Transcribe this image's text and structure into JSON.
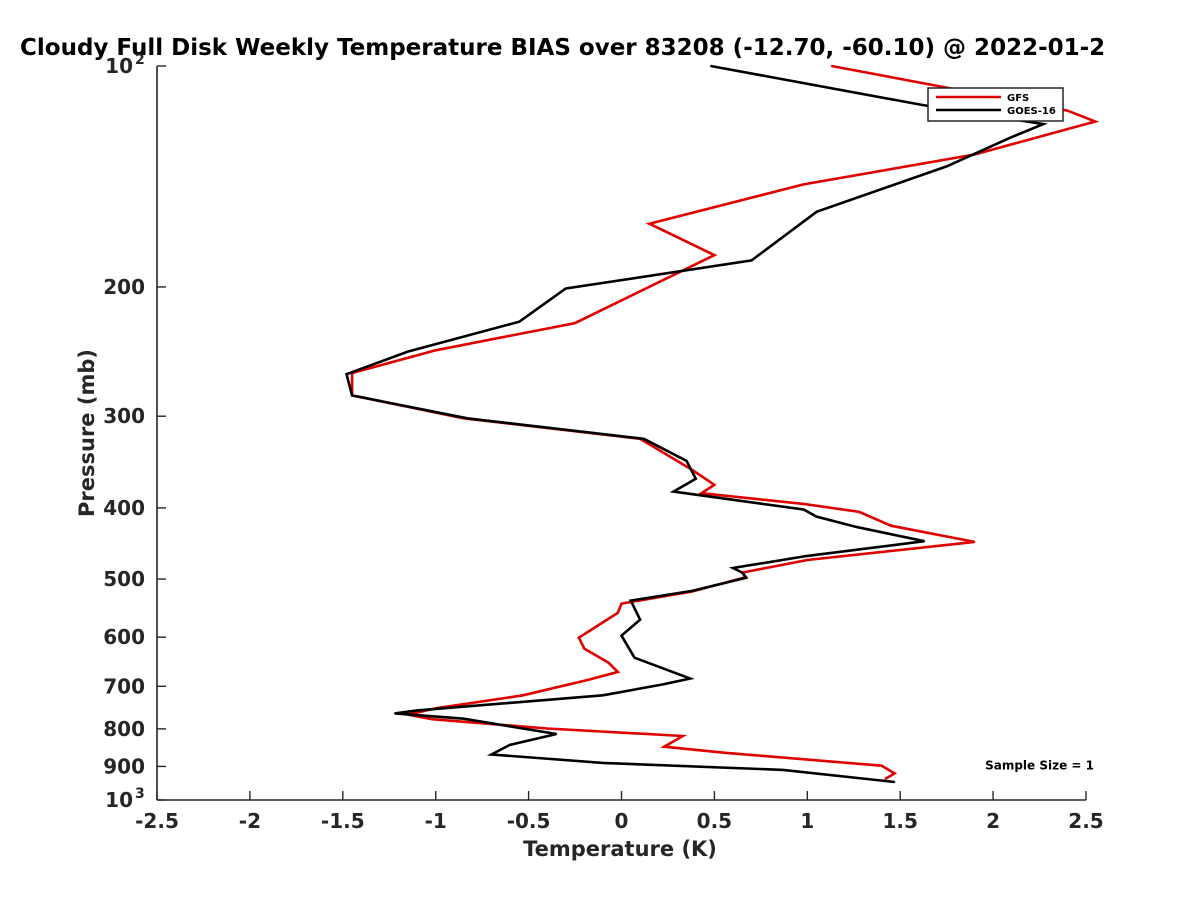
{
  "chart_data": {
    "type": "line",
    "title": "Cloudy Full Disk Weekly Temperature BIAS over 83208 (-12.70, -60.10) @ 2022-01-2",
    "xlabel": "Temperature (K)",
    "ylabel": "Pressure (mb)",
    "xlim": [
      -2.5,
      2.5
    ],
    "ylim": [
      100,
      1000
    ],
    "y_scale": "log",
    "y_reversed": true,
    "x_ticks": [
      "-2.5",
      "-2",
      "-1.5",
      "-1",
      "-0.5",
      "0",
      "0.5",
      "1",
      "1.5",
      "2",
      "2.5"
    ],
    "y_ticks": [
      {
        "value": 100,
        "base": "10",
        "exp": "2"
      },
      {
        "value": 200,
        "label": "200"
      },
      {
        "value": 300,
        "label": "300"
      },
      {
        "value": 400,
        "label": "400"
      },
      {
        "value": 500,
        "label": "500"
      },
      {
        "value": 600,
        "label": "600"
      },
      {
        "value": 700,
        "label": "700"
      },
      {
        "value": 800,
        "label": "800"
      },
      {
        "value": 900,
        "label": "900"
      },
      {
        "value": 1000,
        "base": "10",
        "exp": "3"
      }
    ],
    "grid": false,
    "legend_position": "top-right",
    "series": [
      {
        "name": "GFS",
        "color": "#e00000",
        "points": [
          [
            1.13,
            100
          ],
          [
            1.75,
            107
          ],
          [
            2.4,
            115
          ],
          [
            2.55,
            119
          ],
          [
            1.9,
            132
          ],
          [
            0.98,
            145
          ],
          [
            0.15,
            164
          ],
          [
            0.5,
            181
          ],
          [
            -0.25,
            224
          ],
          [
            -1.0,
            244
          ],
          [
            -1.45,
            262
          ],
          [
            -1.45,
            281
          ],
          [
            -0.85,
            302
          ],
          [
            0.1,
            322
          ],
          [
            0.38,
            355
          ],
          [
            0.5,
            372
          ],
          [
            0.43,
            382
          ],
          [
            0.98,
            395
          ],
          [
            1.28,
            405
          ],
          [
            1.45,
            423
          ],
          [
            1.9,
            445
          ],
          [
            1.0,
            471
          ],
          [
            0.65,
            490
          ],
          [
            0.67,
            497
          ],
          [
            0.38,
            520
          ],
          [
            0.0,
            540
          ],
          [
            -0.02,
            556
          ],
          [
            -0.23,
            601
          ],
          [
            -0.2,
            622
          ],
          [
            -0.07,
            650
          ],
          [
            -0.02,
            669
          ],
          [
            -0.18,
            686
          ],
          [
            -0.53,
            720
          ],
          [
            -1.0,
            750
          ],
          [
            -1.15,
            765
          ],
          [
            -1.02,
            776
          ],
          [
            -0.4,
            799
          ],
          [
            0.33,
            818
          ],
          [
            0.23,
            846
          ],
          [
            0.55,
            862
          ],
          [
            1.4,
            898
          ],
          [
            1.47,
            920
          ],
          [
            1.42,
            936
          ]
        ]
      },
      {
        "name": "GOES-16",
        "color": "#000000",
        "points": [
          [
            0.48,
            100
          ],
          [
            1.62,
            113
          ],
          [
            2.27,
            120
          ],
          [
            2.1,
            125
          ],
          [
            1.75,
            137
          ],
          [
            1.05,
            158
          ],
          [
            0.7,
            184
          ],
          [
            -0.3,
            201
          ],
          [
            -0.55,
            223
          ],
          [
            -1.15,
            245
          ],
          [
            -1.48,
            263
          ],
          [
            -1.45,
            281
          ],
          [
            -0.83,
            302
          ],
          [
            0.12,
            322
          ],
          [
            0.35,
            345
          ],
          [
            0.4,
            365
          ],
          [
            0.28,
            380
          ],
          [
            0.98,
            402
          ],
          [
            1.05,
            411
          ],
          [
            1.27,
            425
          ],
          [
            1.63,
            444
          ],
          [
            1.0,
            465
          ],
          [
            0.6,
            483
          ],
          [
            0.65,
            490
          ],
          [
            0.67,
            498
          ],
          [
            0.38,
            519
          ],
          [
            0.05,
            535
          ],
          [
            0.1,
            568
          ],
          [
            0.0,
            597
          ],
          [
            0.07,
            640
          ],
          [
            0.28,
            670
          ],
          [
            0.37,
            683
          ],
          [
            0.22,
            696
          ],
          [
            -0.1,
            720
          ],
          [
            -1.1,
            755
          ],
          [
            -1.22,
            762
          ],
          [
            -0.85,
            775
          ],
          [
            -0.35,
            813
          ],
          [
            -0.6,
            841
          ],
          [
            -0.7,
            867
          ],
          [
            -0.1,
            890
          ],
          [
            0.87,
            910
          ],
          [
            1.47,
            945
          ]
        ]
      }
    ],
    "annotations": [
      {
        "text": "Sample Size = 1",
        "x": 2.25,
        "y": 898
      }
    ]
  }
}
